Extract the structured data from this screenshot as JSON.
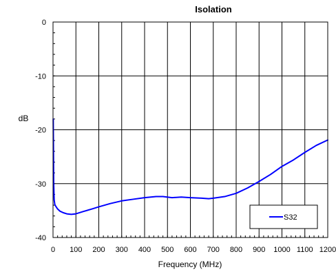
{
  "chart_data": {
    "type": "line",
    "title": "Isolation",
    "xlabel": "Frequency (MHz)",
    "ylabel": "dB",
    "xlim": [
      0,
      1200
    ],
    "ylim": [
      -40,
      0
    ],
    "x_ticks": [
      0,
      100,
      200,
      300,
      400,
      500,
      600,
      700,
      800,
      900,
      1000,
      1100,
      1200
    ],
    "y_ticks": [
      0,
      -10,
      -20,
      -30,
      -40
    ],
    "grid": true,
    "legend_position": "bottom-right",
    "series": [
      {
        "name": "S32",
        "color": "#0000ff",
        "x": [
          1,
          2,
          3,
          5,
          8,
          12,
          20,
          30,
          45,
          60,
          80,
          100,
          130,
          170,
          200,
          250,
          300,
          350,
          400,
          450,
          480,
          520,
          560,
          600,
          650,
          680,
          700,
          750,
          800,
          850,
          900,
          950,
          1000,
          1050,
          1100,
          1150,
          1200
        ],
        "y": [
          -18,
          -24,
          -30,
          -33,
          -33.9,
          -34.2,
          -34.7,
          -35.1,
          -35.4,
          -35.6,
          -35.7,
          -35.6,
          -35.2,
          -34.7,
          -34.3,
          -33.7,
          -33.2,
          -32.9,
          -32.6,
          -32.4,
          -32.4,
          -32.6,
          -32.5,
          -32.6,
          -32.7,
          -32.8,
          -32.7,
          -32.4,
          -31.8,
          -30.8,
          -29.6,
          -28.3,
          -26.8,
          -25.6,
          -24.2,
          -22.9,
          -21.9
        ]
      }
    ]
  }
}
